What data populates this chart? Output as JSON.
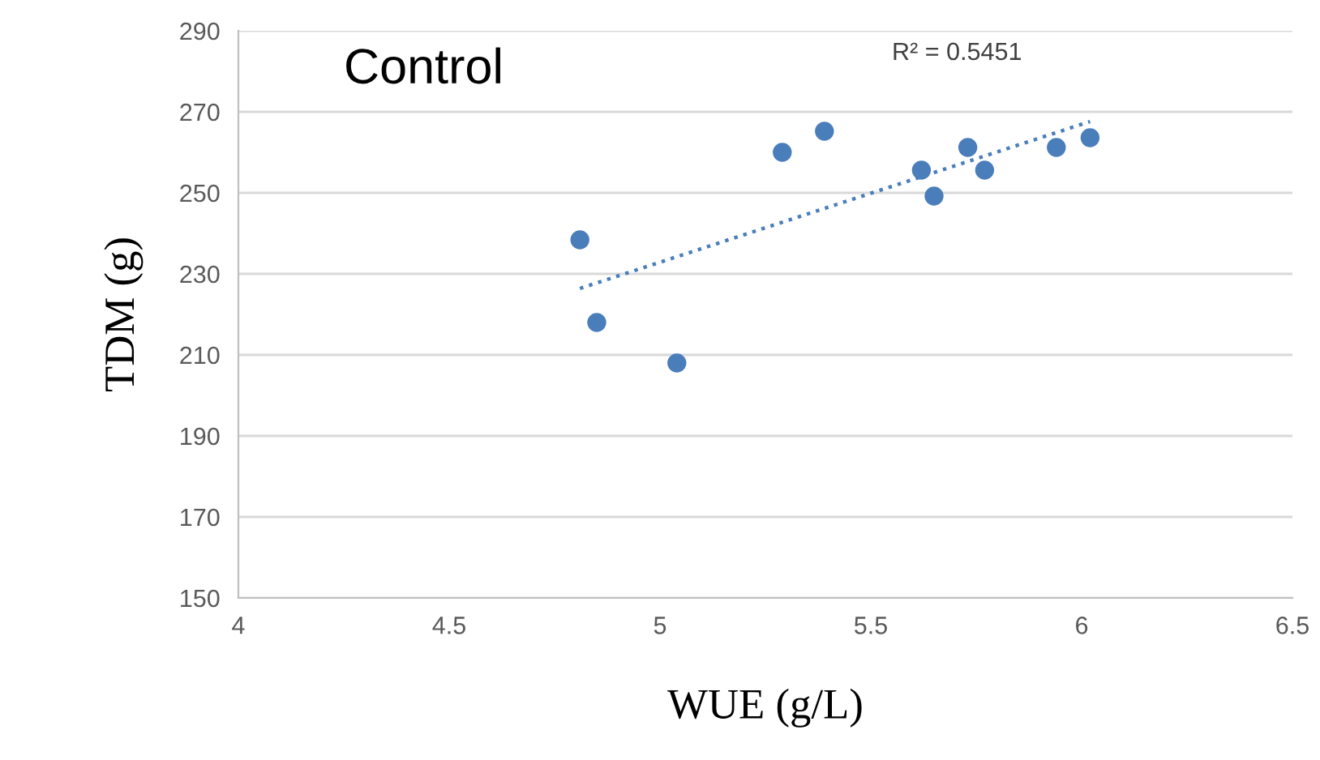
{
  "chart_data": {
    "type": "scatter",
    "title": "Control",
    "xlabel": "WUE (g/L)",
    "ylabel": "TDM (g)",
    "annotations": [
      "R² = 0.5451"
    ],
    "series": [
      {
        "color": "#4a7ebb",
        "marker": "circle",
        "x": [
          4.81,
          4.85,
          5.04,
          5.29,
          5.39,
          5.62,
          5.65,
          5.73,
          5.77,
          5.94,
          6.02
        ],
        "values": [
          238.4,
          218,
          208,
          260,
          265.2,
          255.6,
          249.2,
          261.2,
          255.6,
          261.2,
          263.6
        ]
      },
      {
        "type": "line",
        "color": "#4a7ebb",
        "line_style": "dotted",
        "marker": "none",
        "x": [
          4.81,
          6.02
        ],
        "values": [
          226.4,
          267.6
        ]
      }
    ],
    "xlim": [
      4,
      6.5
    ],
    "xticks": [
      4,
      4.5,
      5,
      5.5,
      6,
      6.5
    ],
    "ylim": [
      150,
      290
    ],
    "yticks": [
      150,
      170,
      190,
      210,
      230,
      250,
      270,
      290
    ],
    "grid": "y",
    "legend": false
  }
}
